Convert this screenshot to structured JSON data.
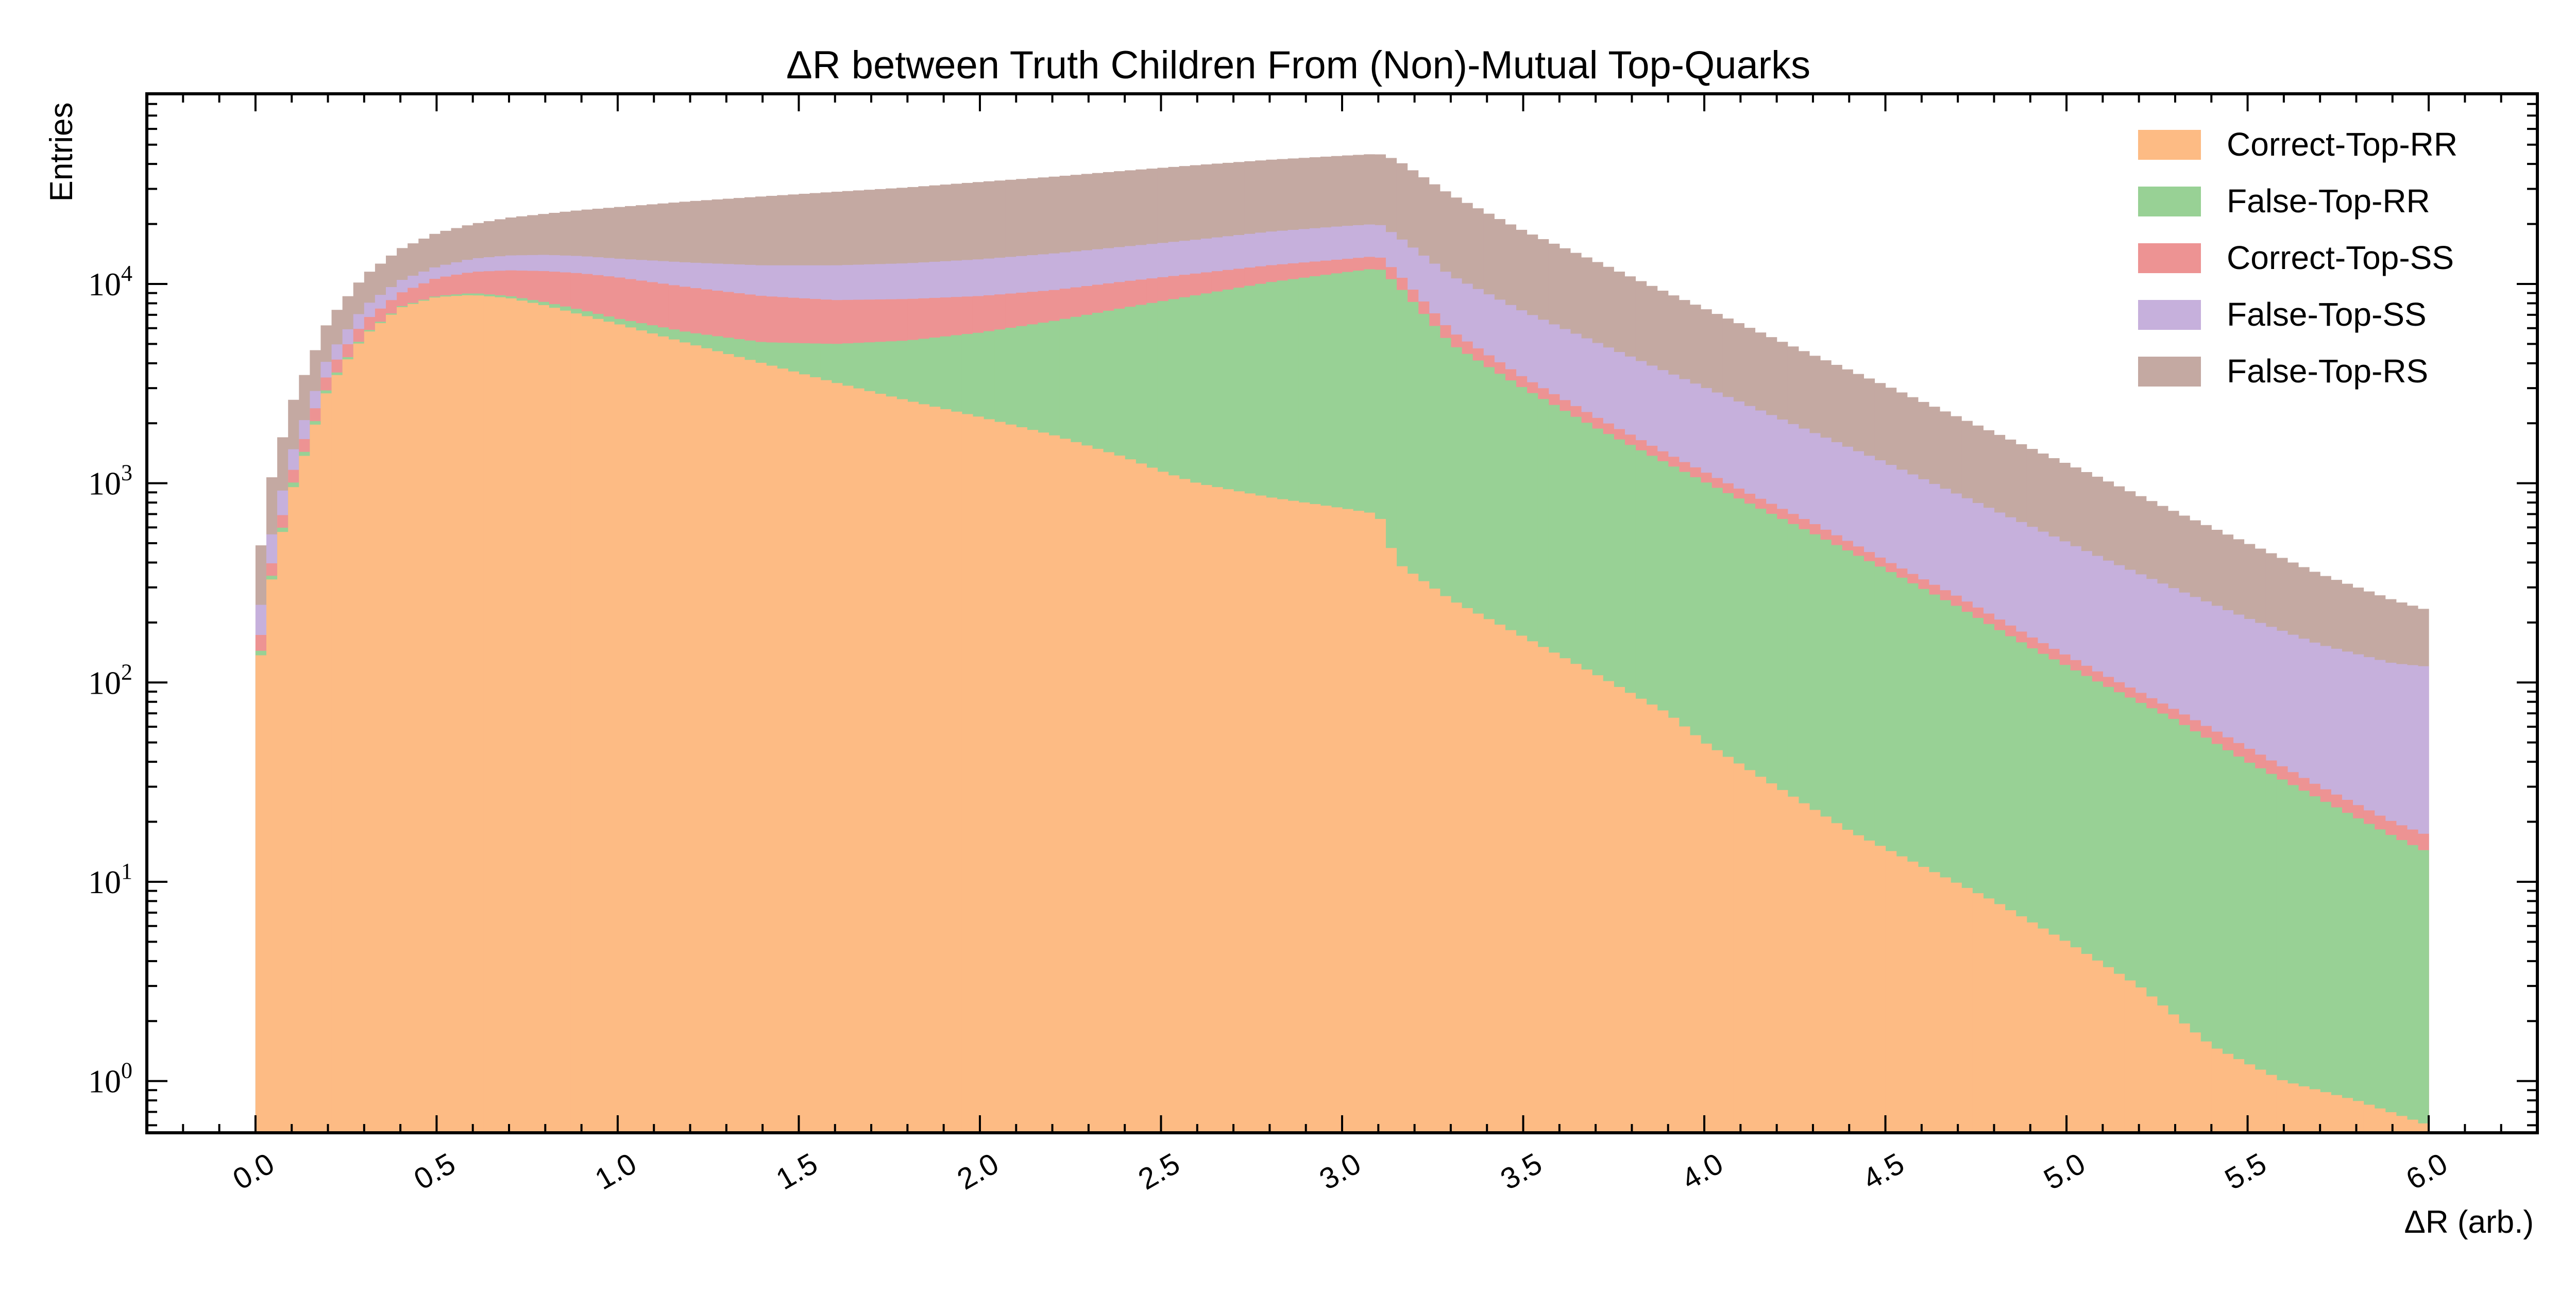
{
  "chart_data": {
    "type": "histogram-stacked-log",
    "title": "ΔR between Truth Children From (Non)-Mutual Top-Quarks",
    "xlabel": "ΔR (arb.)",
    "ylabel": "Entries",
    "xlim": [
      -0.3,
      6.3
    ],
    "ylim": [
      0.55,
      90000
    ],
    "yscale": "log",
    "x_ticks": [
      0.0,
      0.5,
      1.0,
      1.5,
      2.0,
      2.5,
      3.0,
      3.5,
      4.0,
      4.5,
      5.0,
      5.5,
      6.0
    ],
    "x_tick_labels": [
      "0.0",
      "0.5",
      "1.0",
      "1.5",
      "2.0",
      "2.5",
      "3.0",
      "3.5",
      "4.0",
      "4.5",
      "5.0",
      "5.5",
      "6.0"
    ],
    "y_ticks": [
      1,
      10,
      100,
      1000,
      10000
    ],
    "y_tick_labels": [
      {
        "base": "10",
        "exp": "0"
      },
      {
        "base": "10",
        "exp": "1"
      },
      {
        "base": "10",
        "exp": "2"
      },
      {
        "base": "10",
        "exp": "3"
      },
      {
        "base": "10",
        "exp": "4"
      }
    ],
    "legend_position": "top-right",
    "bins": {
      "start": 0.0,
      "end": 6.0,
      "count": 200,
      "stacked": true
    },
    "series": [
      {
        "name": "Correct-Top-RR",
        "color": "#fdbb84",
        "cumulative_top_samples": [
          [
            0.0,
            75
          ],
          [
            0.03,
            250
          ],
          [
            0.1,
            900
          ],
          [
            0.2,
            3000
          ],
          [
            0.3,
            5500
          ],
          [
            0.4,
            7600
          ],
          [
            0.5,
            8600
          ],
          [
            0.6,
            8800
          ],
          [
            0.7,
            8500
          ],
          [
            0.8,
            7800
          ],
          [
            0.9,
            7000
          ],
          [
            1.0,
            6300
          ],
          [
            1.2,
            5000
          ],
          [
            1.4,
            4000
          ],
          [
            1.6,
            3200
          ],
          [
            1.8,
            2600
          ],
          [
            2.0,
            2150
          ],
          [
            2.2,
            1750
          ],
          [
            2.4,
            1350
          ],
          [
            2.5,
            1150
          ],
          [
            2.6,
            1000
          ],
          [
            2.8,
            850
          ],
          [
            3.0,
            750
          ],
          [
            3.1,
            700
          ],
          [
            3.15,
            400
          ],
          [
            3.3,
            260
          ],
          [
            3.5,
            170
          ],
          [
            3.7,
            110
          ],
          [
            3.9,
            70
          ],
          [
            4.0,
            50
          ],
          [
            4.2,
            30
          ],
          [
            4.4,
            18
          ],
          [
            4.6,
            12
          ],
          [
            4.8,
            8
          ],
          [
            5.0,
            5
          ],
          [
            5.2,
            3
          ],
          [
            5.4,
            1.5
          ],
          [
            5.6,
            1
          ],
          [
            5.8,
            0.8
          ],
          [
            6.0,
            0.6
          ]
        ]
      },
      {
        "name": "False-Top-RR",
        "color": "#98d195",
        "cumulative_top_samples": [
          [
            0.0,
            80
          ],
          [
            0.03,
            260
          ],
          [
            0.1,
            950
          ],
          [
            0.2,
            3100
          ],
          [
            0.3,
            5600
          ],
          [
            0.4,
            7700
          ],
          [
            0.5,
            8700
          ],
          [
            0.6,
            9000
          ],
          [
            0.7,
            8700
          ],
          [
            0.8,
            8100
          ],
          [
            0.9,
            7400
          ],
          [
            1.0,
            6700
          ],
          [
            1.2,
            5700
          ],
          [
            1.4,
            5100
          ],
          [
            1.6,
            5000
          ],
          [
            1.8,
            5200
          ],
          [
            2.0,
            5700
          ],
          [
            2.2,
            6500
          ],
          [
            2.4,
            7600
          ],
          [
            2.6,
            8800
          ],
          [
            2.8,
            10200
          ],
          [
            3.0,
            11400
          ],
          [
            3.1,
            12000
          ],
          [
            3.15,
            10000
          ],
          [
            3.3,
            5000
          ],
          [
            3.5,
            3000
          ],
          [
            3.7,
            1900
          ],
          [
            3.9,
            1250
          ],
          [
            4.1,
            830
          ],
          [
            4.3,
            560
          ],
          [
            4.5,
            370
          ],
          [
            4.7,
            240
          ],
          [
            4.9,
            150
          ],
          [
            5.1,
            98
          ],
          [
            5.3,
            65
          ],
          [
            5.5,
            40
          ],
          [
            5.7,
            26
          ],
          [
            5.9,
            17
          ],
          [
            6.0,
            14
          ]
        ]
      },
      {
        "name": "Correct-Top-SS",
        "color": "#ed9393",
        "cumulative_top_samples": [
          [
            0.0,
            100
          ],
          [
            0.03,
            300
          ],
          [
            0.1,
            1100
          ],
          [
            0.2,
            3600
          ],
          [
            0.3,
            6500
          ],
          [
            0.4,
            9000
          ],
          [
            0.5,
            10700
          ],
          [
            0.6,
            11500
          ],
          [
            0.7,
            11700
          ],
          [
            0.8,
            11600
          ],
          [
            0.9,
            11300
          ],
          [
            1.0,
            10800
          ],
          [
            1.2,
            9600
          ],
          [
            1.4,
            8700
          ],
          [
            1.6,
            8300
          ],
          [
            1.8,
            8400
          ],
          [
            2.0,
            8700
          ],
          [
            2.2,
            9300
          ],
          [
            2.4,
            10300
          ],
          [
            2.6,
            11300
          ],
          [
            2.8,
            12400
          ],
          [
            3.0,
            13300
          ],
          [
            3.1,
            13800
          ],
          [
            3.15,
            11500
          ],
          [
            3.3,
            5800
          ],
          [
            3.5,
            3400
          ],
          [
            3.7,
            2150
          ],
          [
            3.9,
            1400
          ],
          [
            4.1,
            930
          ],
          [
            4.3,
            630
          ],
          [
            4.5,
            410
          ],
          [
            4.7,
            270
          ],
          [
            4.9,
            170
          ],
          [
            5.1,
            110
          ],
          [
            5.3,
            73
          ],
          [
            5.5,
            47
          ],
          [
            5.7,
            30
          ],
          [
            5.9,
            20
          ],
          [
            6.0,
            17
          ]
        ]
      },
      {
        "name": "False-Top-SS",
        "color": "#c6b0dc",
        "cumulative_top_samples": [
          [
            0.0,
            140
          ],
          [
            0.03,
            430
          ],
          [
            0.1,
            1400
          ],
          [
            0.2,
            4300
          ],
          [
            0.3,
            7700
          ],
          [
            0.4,
            10400
          ],
          [
            0.5,
            12200
          ],
          [
            0.6,
            13400
          ],
          [
            0.7,
            13900
          ],
          [
            0.8,
            14000
          ],
          [
            0.9,
            13800
          ],
          [
            1.0,
            13400
          ],
          [
            1.2,
            12800
          ],
          [
            1.4,
            12400
          ],
          [
            1.6,
            12400
          ],
          [
            1.8,
            12700
          ],
          [
            2.0,
            13300
          ],
          [
            2.2,
            14200
          ],
          [
            2.4,
            15400
          ],
          [
            2.6,
            16700
          ],
          [
            2.8,
            18300
          ],
          [
            3.0,
            19500
          ],
          [
            3.1,
            20000
          ],
          [
            3.15,
            17500
          ],
          [
            3.3,
            11000
          ],
          [
            3.5,
            7300
          ],
          [
            3.7,
            5100
          ],
          [
            3.9,
            3600
          ],
          [
            4.1,
            2550
          ],
          [
            4.3,
            1800
          ],
          [
            4.5,
            1270
          ],
          [
            4.7,
            880
          ],
          [
            4.9,
            610
          ],
          [
            5.1,
            420
          ],
          [
            5.3,
            295
          ],
          [
            5.5,
            210
          ],
          [
            5.7,
            155
          ],
          [
            5.9,
            125
          ],
          [
            6.0,
            120
          ]
        ]
      },
      {
        "name": "False-Top-RS",
        "color": "#c4a9a2",
        "cumulative_top_samples": [
          [
            0.0,
            280
          ],
          [
            0.03,
            850
          ],
          [
            0.1,
            2500
          ],
          [
            0.2,
            6500
          ],
          [
            0.3,
            11000
          ],
          [
            0.4,
            15000
          ],
          [
            0.5,
            18000
          ],
          [
            0.6,
            20000
          ],
          [
            0.7,
            21500
          ],
          [
            0.8,
            22500
          ],
          [
            0.9,
            23500
          ],
          [
            1.0,
            24300
          ],
          [
            1.2,
            26000
          ],
          [
            1.4,
            27500
          ],
          [
            1.6,
            29000
          ],
          [
            1.8,
            30500
          ],
          [
            2.0,
            32500
          ],
          [
            2.2,
            34500
          ],
          [
            2.4,
            37000
          ],
          [
            2.6,
            39500
          ],
          [
            2.8,
            42000
          ],
          [
            3.0,
            44000
          ],
          [
            3.1,
            45000
          ],
          [
            3.15,
            42000
          ],
          [
            3.3,
            28000
          ],
          [
            3.5,
            18500
          ],
          [
            3.7,
            13000
          ],
          [
            3.9,
            9000
          ],
          [
            4.1,
            6300
          ],
          [
            4.3,
            4400
          ],
          [
            4.5,
            3100
          ],
          [
            4.7,
            2150
          ],
          [
            4.9,
            1500
          ],
          [
            5.1,
            1050
          ],
          [
            5.3,
            720
          ],
          [
            5.5,
            500
          ],
          [
            5.7,
            350
          ],
          [
            5.9,
            260
          ],
          [
            6.0,
            230
          ]
        ]
      }
    ]
  }
}
